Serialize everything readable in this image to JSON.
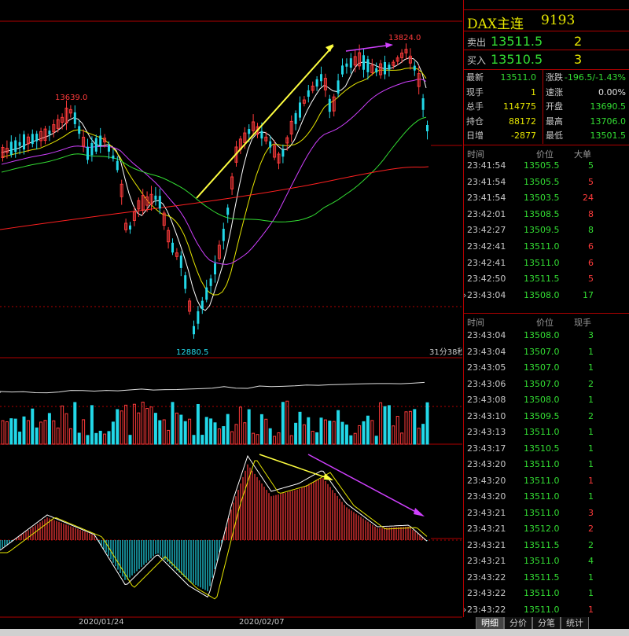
{
  "chart": {
    "high_label": "13824.0",
    "prev_high_label": "13639.0",
    "low_label": "12880.5",
    "timer": "31分38秒",
    "dates": [
      "2020/01/24",
      "2020/02/07"
    ],
    "colors": {
      "up": "#ff3b3b",
      "down": "#22d8e8",
      "yellow": "#ffff40",
      "purple": "#d040ff",
      "red": "#ff2020"
    }
  },
  "quote": {
    "title": "DAX主连",
    "code": "9193",
    "sell_label": "卖出",
    "sell_price": "13511.5",
    "sell_vol": "2",
    "buy_label": "买入",
    "buy_price": "13510.5",
    "buy_vol": "3",
    "stats": [
      {
        "l1": "最新",
        "v1": "13511.0",
        "c1": "#33dd33",
        "l2": "涨跌",
        "v2": "-196.5/-1.43%",
        "c2": "#33dd33"
      },
      {
        "l1": "现手",
        "v1": "1",
        "c1": "#e6e600",
        "l2": "速涨",
        "v2": "0.00%",
        "c2": "#e0e0e0"
      },
      {
        "l1": "总手",
        "v1": "114775",
        "c1": "#e6e600",
        "l2": "开盘",
        "v2": "13690.5",
        "c2": "#33dd33"
      },
      {
        "l1": "持仓",
        "v1": "88172",
        "c1": "#e6e600",
        "l2": "最高",
        "v2": "13706.0",
        "c2": "#33dd33"
      },
      {
        "l1": "日增",
        "v1": "-2877",
        "c1": "#e6e600",
        "l2": "最低",
        "v2": "13501.5",
        "c2": "#33dd33"
      }
    ]
  },
  "big_orders": {
    "headers": [
      "时间",
      "价位",
      "大单"
    ],
    "rows": [
      {
        "time": "23:41:54",
        "price": "13505.5",
        "vol": "5",
        "color": "#33dd33",
        "mark": ""
      },
      {
        "time": "23:41:54",
        "price": "13505.5",
        "vol": "5",
        "color": "#ff3b3b",
        "mark": ""
      },
      {
        "time": "23:41:54",
        "price": "13503.5",
        "vol": "24",
        "color": "#ff3b3b",
        "mark": ""
      },
      {
        "time": "23:42:01",
        "price": "13508.5",
        "vol": "8",
        "color": "#ff3b3b",
        "mark": ""
      },
      {
        "time": "23:42:27",
        "price": "13509.5",
        "vol": "8",
        "color": "#33dd33",
        "mark": ""
      },
      {
        "time": "23:42:41",
        "price": "13511.0",
        "vol": "6",
        "color": "#ff3b3b",
        "mark": ""
      },
      {
        "time": "23:42:41",
        "price": "13511.0",
        "vol": "6",
        "color": "#ff3b3b",
        "mark": ""
      },
      {
        "time": "23:42:50",
        "price": "13511.5",
        "vol": "5",
        "color": "#ff3b3b",
        "mark": ""
      },
      {
        "time": "23:43:04",
        "price": "13508.0",
        "vol": "17",
        "color": "#33dd33",
        "mark": "›"
      }
    ]
  },
  "ticks": {
    "headers": [
      "时间",
      "价位",
      "现手"
    ],
    "rows": [
      {
        "time": "23:43:04",
        "price": "13508.0",
        "vol": "3",
        "color": "#33dd33",
        "mark": ""
      },
      {
        "time": "23:43:04",
        "price": "13507.0",
        "vol": "1",
        "color": "#33dd33",
        "mark": ""
      },
      {
        "time": "23:43:05",
        "price": "13507.0",
        "vol": "1",
        "color": "#33dd33",
        "mark": ""
      },
      {
        "time": "23:43:06",
        "price": "13507.0",
        "vol": "2",
        "color": "#33dd33",
        "mark": ""
      },
      {
        "time": "23:43:08",
        "price": "13508.0",
        "vol": "1",
        "color": "#33dd33",
        "mark": ""
      },
      {
        "time": "23:43:10",
        "price": "13509.5",
        "vol": "2",
        "color": "#33dd33",
        "mark": ""
      },
      {
        "time": "23:43:13",
        "price": "13511.0",
        "vol": "1",
        "color": "#33dd33",
        "mark": ""
      },
      {
        "time": "23:43:17",
        "price": "13510.5",
        "vol": "1",
        "color": "#33dd33",
        "mark": ""
      },
      {
        "time": "23:43:20",
        "price": "13511.0",
        "vol": "1",
        "color": "#33dd33",
        "mark": ""
      },
      {
        "time": "23:43:20",
        "price": "13511.0",
        "vol": "1",
        "color": "#ff3b3b",
        "mark": ""
      },
      {
        "time": "23:43:20",
        "price": "13511.0",
        "vol": "1",
        "color": "#33dd33",
        "mark": ""
      },
      {
        "time": "23:43:21",
        "price": "13511.0",
        "vol": "3",
        "color": "#ff3b3b",
        "mark": ""
      },
      {
        "time": "23:43:21",
        "price": "13512.0",
        "vol": "2",
        "color": "#ff3b3b",
        "mark": ""
      },
      {
        "time": "23:43:21",
        "price": "13511.5",
        "vol": "2",
        "color": "#33dd33",
        "mark": ""
      },
      {
        "time": "23:43:21",
        "price": "13511.0",
        "vol": "4",
        "color": "#33dd33",
        "mark": ""
      },
      {
        "time": "23:43:22",
        "price": "13511.5",
        "vol": "1",
        "color": "#33dd33",
        "mark": ""
      },
      {
        "time": "23:43:22",
        "price": "13511.0",
        "vol": "1",
        "color": "#33dd33",
        "mark": ""
      },
      {
        "time": "23:43:22",
        "price": "13511.0",
        "vol": "1",
        "color": "#ff3b3b",
        "mark": "›"
      }
    ]
  },
  "tabs": [
    "明细",
    "分价",
    "分笔",
    "统计"
  ]
}
